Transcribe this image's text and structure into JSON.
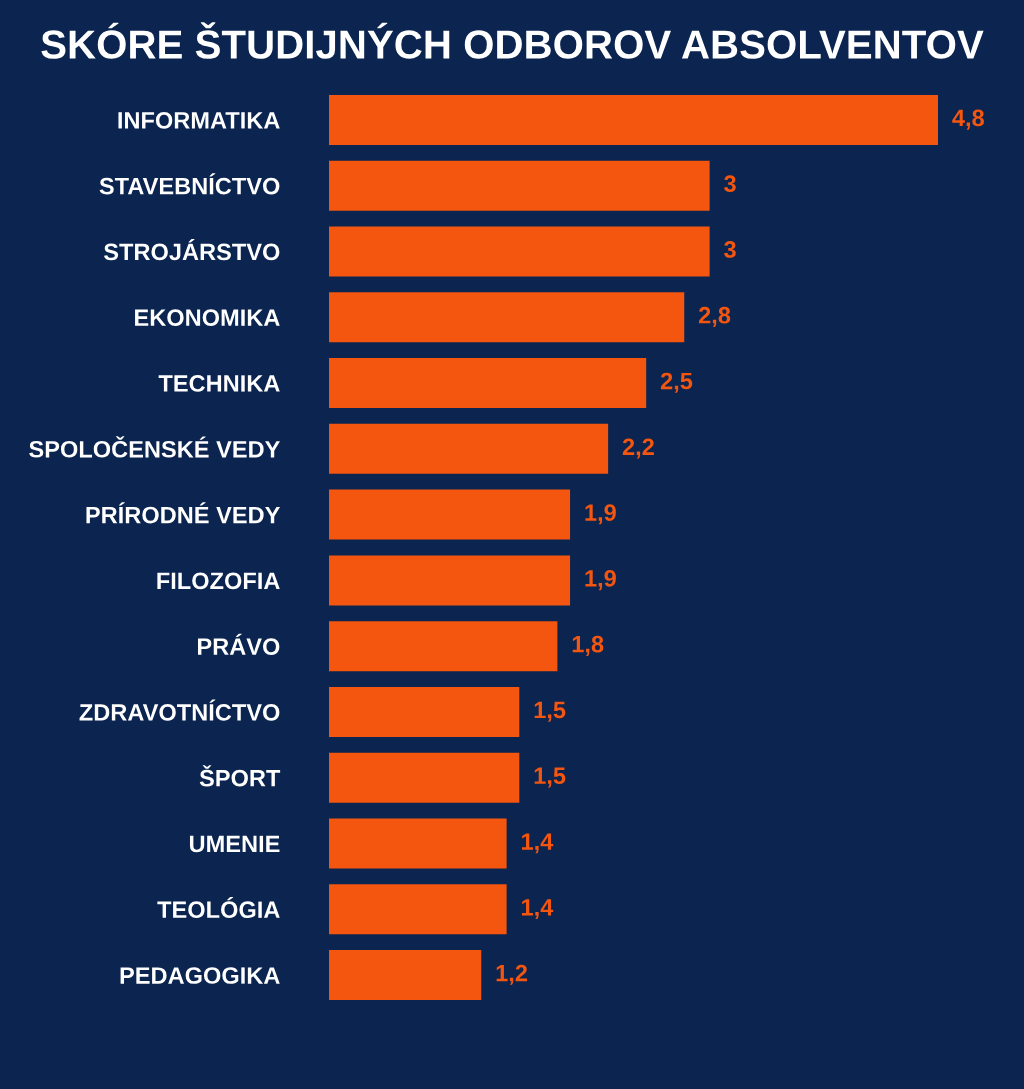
{
  "chart_data": {
    "type": "bar",
    "orientation": "horizontal",
    "title": "SKÓRE ŠTUDIJNÝCH ODBOROV ABSOLVENTOV",
    "categories": [
      "INFORMATIKA",
      "STAVEBNÍCTVO",
      "STROJÁRSTVO",
      "EKONOMIKA",
      "TECHNIKA",
      "SPOLOČENSKÉ VEDY",
      "PRÍRODNÉ VEDY",
      "FILOZOFIA",
      "PRÁVO",
      "ZDRAVOTNÍCTVO",
      "ŠPORT",
      "UMENIE",
      "TEOLÓGIA",
      "PEDAGOGIKA"
    ],
    "values": [
      4.8,
      3,
      3,
      2.8,
      2.5,
      2.2,
      1.9,
      1.9,
      1.8,
      1.5,
      1.5,
      1.4,
      1.4,
      1.2
    ],
    "value_labels": [
      "4,8",
      "3",
      "3",
      "2,8",
      "2,5",
      "2,2",
      "1,9",
      "1,9",
      "1,8",
      "1,5",
      "1,5",
      "1,4",
      "1,4",
      "1,2"
    ],
    "color": "#f4550f",
    "grid": false,
    "legend": false,
    "tick_labels": "y"
  }
}
